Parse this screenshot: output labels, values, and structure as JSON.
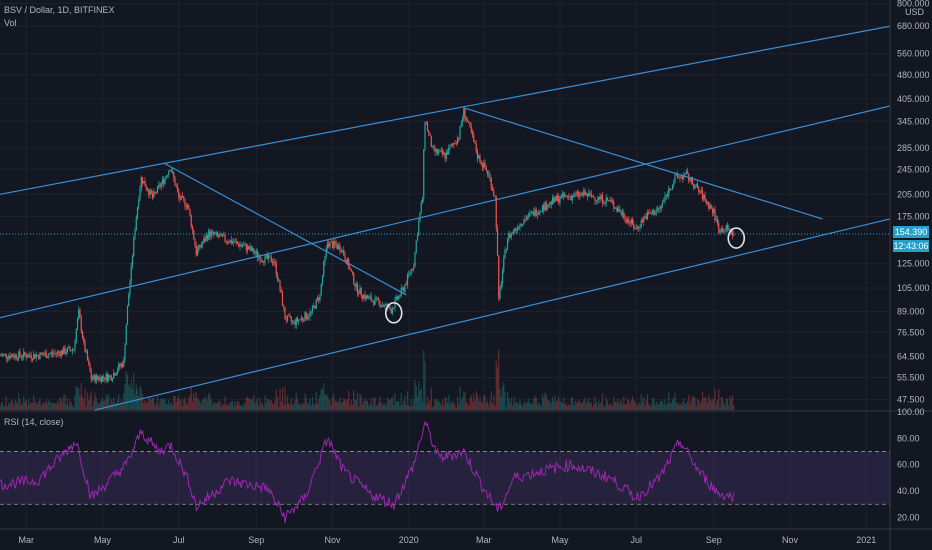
{
  "header": {
    "symbol_line": "BSV / Dollar, 1D, BITFINEX",
    "volume_label": "Vol",
    "rsi_label": "RSI (14, close)",
    "currency": "USD"
  },
  "price_tags": {
    "last_price": "154.390",
    "countdown": "12:43:06"
  },
  "chart_data": [
    {
      "type": "candlestick",
      "title": "BSV / Dollar, 1D, BITFINEX",
      "y_scale": "log",
      "ylim": [
        44,
        820
      ],
      "y_ticks": [
        "800.000",
        "680.000",
        "560.000",
        "480.000",
        "405.000",
        "345.000",
        "285.000",
        "245.000",
        "205.000",
        "175.000",
        "125.000",
        "105.000",
        "89.000",
        "76.500",
        "64.500",
        "55.500",
        "47.500"
      ],
      "x_ticks": [
        "Mar",
        "May",
        "Jul",
        "Sep",
        "Nov",
        "2020",
        "Mar",
        "May",
        "Jul",
        "Sep",
        "Nov",
        "2021"
      ],
      "x_range": [
        "2019-02-08",
        "2021-01-20"
      ],
      "price_path": [
        [
          "2019-02-08",
          65
        ],
        [
          "2019-03-10",
          65
        ],
        [
          "2019-03-25",
          66
        ],
        [
          "2019-04-08",
          68
        ],
        [
          "2019-04-12",
          88
        ],
        [
          "2019-04-16",
          70
        ],
        [
          "2019-04-22",
          55
        ],
        [
          "2019-05-08",
          56
        ],
        [
          "2019-05-18",
          62
        ],
        [
          "2019-05-24",
          120
        ],
        [
          "2019-06-01",
          230
        ],
        [
          "2019-06-10",
          200
        ],
        [
          "2019-06-20",
          230
        ],
        [
          "2019-06-24",
          250
        ],
        [
          "2019-07-01",
          200
        ],
        [
          "2019-07-08",
          190
        ],
        [
          "2019-07-15",
          135
        ],
        [
          "2019-07-25",
          155
        ],
        [
          "2019-08-05",
          150
        ],
        [
          "2019-08-25",
          140
        ],
        [
          "2019-09-05",
          130
        ],
        [
          "2019-09-15",
          128
        ],
        [
          "2019-09-24",
          85
        ],
        [
          "2019-10-01",
          82
        ],
        [
          "2019-10-15",
          88
        ],
        [
          "2019-10-22",
          100
        ],
        [
          "2019-10-28",
          145
        ],
        [
          "2019-11-08",
          140
        ],
        [
          "2019-11-20",
          105
        ],
        [
          "2019-11-28",
          98
        ],
        [
          "2019-12-10",
          94
        ],
        [
          "2019-12-18",
          90
        ],
        [
          "2019-12-28",
          105
        ],
        [
          "2020-01-05",
          125
        ],
        [
          "2020-01-12",
          200
        ],
        [
          "2020-01-14",
          350
        ],
        [
          "2020-01-20",
          280
        ],
        [
          "2020-01-30",
          270
        ],
        [
          "2020-02-10",
          310
        ],
        [
          "2020-02-14",
          370
        ],
        [
          "2020-02-25",
          270
        ],
        [
          "2020-03-05",
          235
        ],
        [
          "2020-03-10",
          200
        ],
        [
          "2020-03-13",
          95
        ],
        [
          "2020-03-20",
          150
        ],
        [
          "2020-04-01",
          170
        ],
        [
          "2020-04-15",
          185
        ],
        [
          "2020-05-01",
          200
        ],
        [
          "2020-05-20",
          205
        ],
        [
          "2020-06-10",
          195
        ],
        [
          "2020-06-25",
          170
        ],
        [
          "2020-07-01",
          160
        ],
        [
          "2020-07-08",
          175
        ],
        [
          "2020-07-20",
          185
        ],
        [
          "2020-08-01",
          230
        ],
        [
          "2020-08-10",
          235
        ],
        [
          "2020-08-20",
          210
        ],
        [
          "2020-09-01",
          180
        ],
        [
          "2020-09-05",
          160
        ],
        [
          "2020-09-12",
          160
        ],
        [
          "2020-09-17",
          154.39
        ]
      ],
      "current_price": 154.39,
      "trendlines": [
        {
          "from": [
            "2019-02-08",
            205
          ],
          "to": [
            "2021-01-20",
            680
          ]
        },
        {
          "from": [
            "2019-02-08",
            85
          ],
          "to": [
            "2021-01-20",
            385
          ]
        },
        {
          "from": [
            "2019-04-25",
            44
          ],
          "to": [
            "2021-01-20",
            172
          ]
        },
        {
          "from": [
            "2019-06-20",
            255
          ],
          "to": [
            "2019-12-30",
            100
          ]
        },
        {
          "from": [
            "2020-02-14",
            380
          ],
          "to": [
            "2020-11-27",
            172
          ]
        }
      ],
      "circled_points": [
        [
          "2019-12-20",
          88
        ],
        [
          "2020-09-19",
          150
        ]
      ]
    },
    {
      "type": "line",
      "title": "RSI (14, close)",
      "ylim": [
        12,
        100
      ],
      "y_ticks": [
        "100.00",
        "80.00",
        "60.00",
        "40.00",
        "20.00"
      ],
      "band": [
        30,
        70
      ],
      "path": [
        [
          "2019-02-08",
          45
        ],
        [
          "2019-03-10",
          48
        ],
        [
          "2019-04-10",
          78
        ],
        [
          "2019-04-22",
          35
        ],
        [
          "2019-05-20",
          60
        ],
        [
          "2019-06-01",
          85
        ],
        [
          "2019-06-15",
          70
        ],
        [
          "2019-06-25",
          75
        ],
        [
          "2019-07-10",
          45
        ],
        [
          "2019-07-15",
          28
        ],
        [
          "2019-08-10",
          48
        ],
        [
          "2019-09-10",
          42
        ],
        [
          "2019-09-24",
          20
        ],
        [
          "2019-10-10",
          35
        ],
        [
          "2019-10-28",
          80
        ],
        [
          "2019-11-10",
          55
        ],
        [
          "2019-12-01",
          38
        ],
        [
          "2019-12-20",
          30
        ],
        [
          "2020-01-05",
          60
        ],
        [
          "2020-01-14",
          92
        ],
        [
          "2020-01-25",
          65
        ],
        [
          "2020-02-14",
          70
        ],
        [
          "2020-03-01",
          42
        ],
        [
          "2020-03-13",
          25
        ],
        [
          "2020-03-25",
          50
        ],
        [
          "2020-04-15",
          55
        ],
        [
          "2020-05-10",
          60
        ],
        [
          "2020-06-10",
          50
        ],
        [
          "2020-07-01",
          35
        ],
        [
          "2020-07-20",
          50
        ],
        [
          "2020-08-05",
          78
        ],
        [
          "2020-08-20",
          55
        ],
        [
          "2020-09-05",
          38
        ],
        [
          "2020-09-17",
          36
        ]
      ]
    }
  ]
}
